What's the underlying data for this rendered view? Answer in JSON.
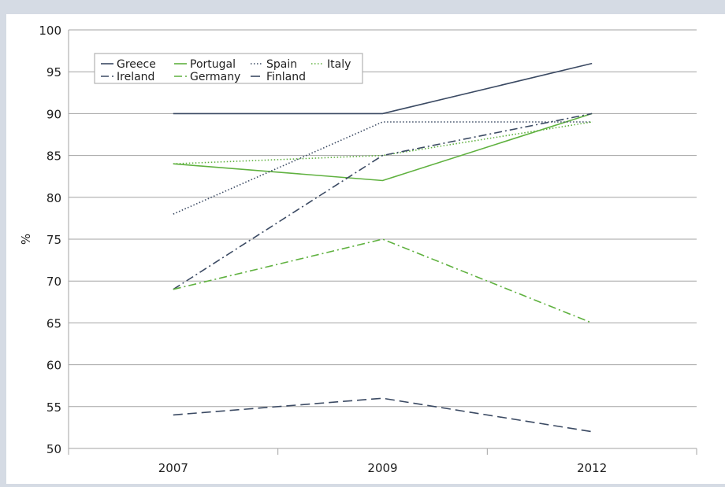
{
  "chart_data": {
    "type": "line",
    "title": "",
    "xlabel": "",
    "ylabel": "%",
    "ylim": [
      50,
      100
    ],
    "yticks": [
      50,
      55,
      60,
      65,
      70,
      75,
      80,
      85,
      90,
      95,
      100
    ],
    "categories": [
      "2007",
      "2009",
      "2012"
    ],
    "grid": "horizontal",
    "legend_position": "top-left",
    "series": [
      {
        "name": "Greece",
        "values": [
          90,
          90,
          96
        ],
        "color": "#3b4a63",
        "dash": "solid"
      },
      {
        "name": "Portugal",
        "values": [
          84,
          82,
          90
        ],
        "color": "#5fb13f",
        "dash": "solid"
      },
      {
        "name": "Spain",
        "values": [
          78,
          89,
          89
        ],
        "color": "#3b4a63",
        "dash": "dotted"
      },
      {
        "name": "Italy",
        "values": [
          84,
          85,
          89
        ],
        "color": "#5fb13f",
        "dash": "dotted"
      },
      {
        "name": "Ireland",
        "values": [
          69,
          85,
          90
        ],
        "color": "#3b4a63",
        "dash": "dashdot"
      },
      {
        "name": "Germany",
        "values": [
          69,
          75,
          65
        ],
        "color": "#5fb13f",
        "dash": "dashdot"
      },
      {
        "name": "Finland",
        "values": [
          54,
          56,
          52
        ],
        "color": "#3b4a63",
        "dash": "dashed"
      }
    ]
  }
}
